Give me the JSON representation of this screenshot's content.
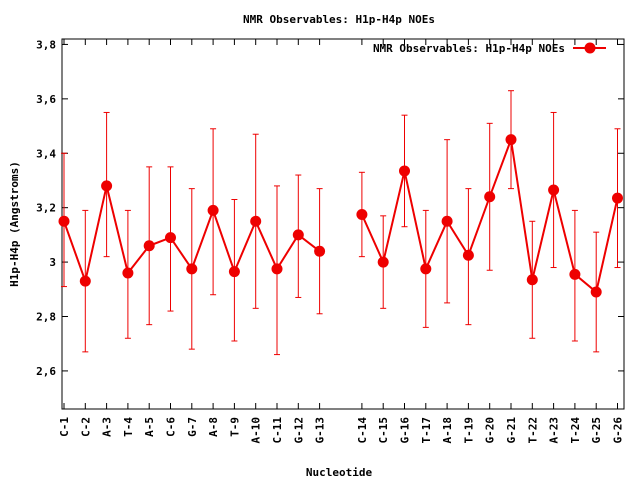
{
  "chart_data": {
    "type": "line",
    "title": "NMR Observables: H1p-H4p NOEs",
    "xlabel": "Nucleotide",
    "ylabel": "H1p-H4p (Angstroms)",
    "ylim": [
      2.46,
      3.82
    ],
    "yticks": [
      2.6,
      2.8,
      3.0,
      3.2,
      3.4,
      3.6,
      3.8
    ],
    "ytick_labels": [
      "2,6",
      "2,8",
      "3",
      "3,2",
      "3,4",
      "3,6",
      "3,8"
    ],
    "categories": [
      "C-1",
      "C-2",
      "A-3",
      "T-4",
      "A-5",
      "C-6",
      "G-7",
      "A-8",
      "T-9",
      "A-10",
      "C-11",
      "G-12",
      "G-13",
      "C-14",
      "C-15",
      "G-16",
      "T-17",
      "A-18",
      "T-19",
      "G-20",
      "G-21",
      "T-22",
      "A-23",
      "T-24",
      "G-25",
      "G-26"
    ],
    "legend": {
      "placement": "top-right",
      "entry": "NMR Observables: H1p-H4p NOEs"
    },
    "grid": false,
    "color": "#ee0000",
    "series": [
      {
        "name": "NMR Observables: H1p-H4p NOEs",
        "segments": [
          {
            "start": 0,
            "values": [
              3.15,
              2.93,
              3.28,
              2.96,
              3.06,
              3.09,
              2.975,
              3.19,
              2.965,
              3.15,
              2.975,
              3.1,
              3.04
            ],
            "err_high": [
              3.4,
              3.19,
              3.55,
              3.19,
              3.35,
              3.35,
              3.27,
              3.49,
              3.23,
              3.47,
              3.28,
              3.32,
              3.27
            ],
            "err_low": [
              2.91,
              2.67,
              3.02,
              2.72,
              2.77,
              2.82,
              2.68,
              2.88,
              2.71,
              2.83,
              2.66,
              2.87,
              2.81
            ]
          },
          {
            "start": 13,
            "values": [
              3.175,
              3.0,
              3.335,
              2.975,
              3.15,
              3.025,
              3.24,
              3.45,
              2.935,
              3.265,
              2.955,
              2.89,
              3.235
            ],
            "err_high": [
              3.33,
              3.17,
              3.54,
              3.19,
              3.45,
              3.27,
              3.51,
              3.63,
              3.15,
              3.55,
              3.19,
              3.11,
              3.49
            ],
            "err_low": [
              3.02,
              2.83,
              3.13,
              2.76,
              2.85,
              2.77,
              2.97,
              3.27,
              2.72,
              2.98,
              2.71,
              2.67,
              2.98
            ]
          }
        ]
      }
    ]
  }
}
